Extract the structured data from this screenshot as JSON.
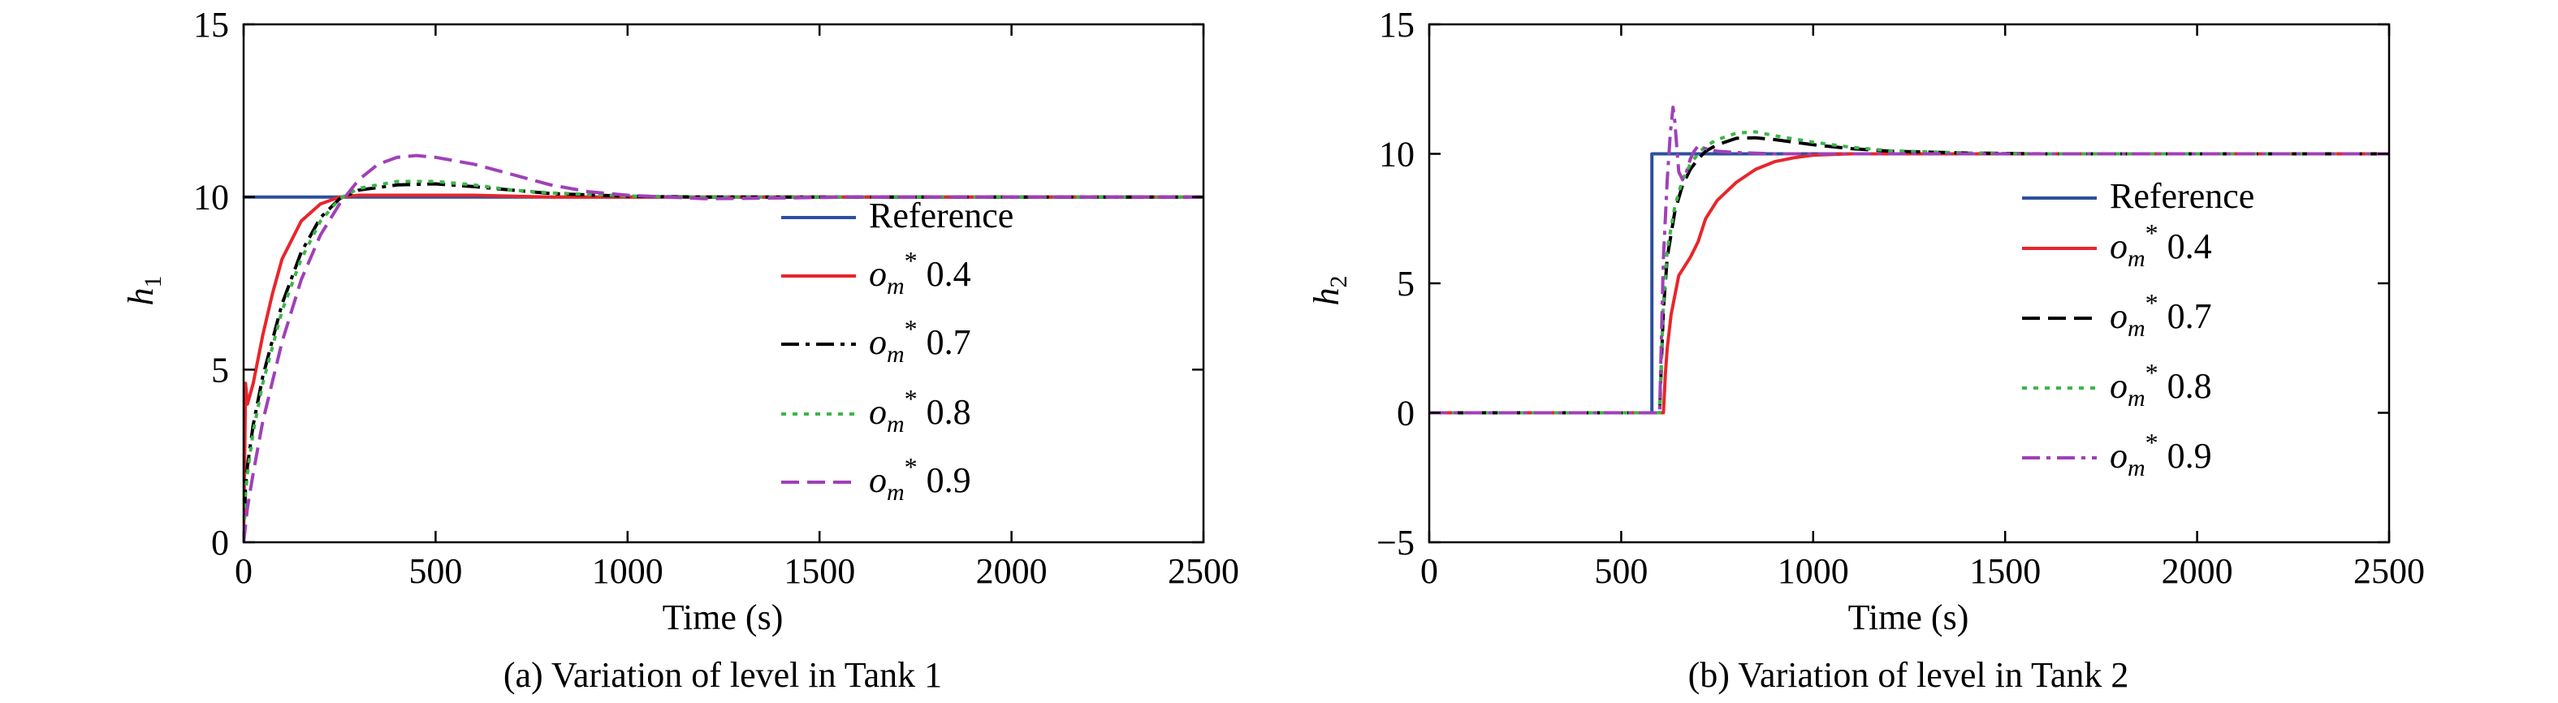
{
  "chart_data": [
    {
      "type": "line",
      "caption": "(a) Variation of level in Tank 1",
      "xlabel": "Time (s)",
      "ylabel": "h",
      "ylabel_sub": "1",
      "xlim": [
        0,
        2500
      ],
      "ylim": [
        0,
        15
      ],
      "xticks": [
        0,
        500,
        1000,
        1500,
        2000,
        2500
      ],
      "yticks": [
        0,
        5,
        10,
        15
      ],
      "grid": false,
      "legend_position": "center-right",
      "series": [
        {
          "name": "Reference",
          "color": "#2e4fa0",
          "dash": "solid",
          "x": [
            0,
            2500
          ],
          "y": [
            10,
            10
          ]
        },
        {
          "name": "0.4",
          "color": "#e8262b",
          "dash": "solid",
          "x": [
            0,
            5,
            10,
            25,
            50,
            75,
            100,
            150,
            200,
            250,
            300,
            350,
            400,
            600,
            800,
            1000,
            1200,
            1500,
            2000,
            2500
          ],
          "y": [
            0,
            4.6,
            4.0,
            4.6,
            6.0,
            7.2,
            8.2,
            9.3,
            9.8,
            10.0,
            10.05,
            10.05,
            10.05,
            10.05,
            10.0,
            10.0,
            10.0,
            10.0,
            10.0,
            10.0
          ]
        },
        {
          "name": "0.7",
          "color": "#000000",
          "dash": "dashdot",
          "x": [
            0,
            5,
            10,
            25,
            50,
            100,
            150,
            200,
            250,
            300,
            400,
            500,
            600,
            700,
            800,
            1000,
            1200,
            1500,
            2000,
            2500
          ],
          "y": [
            0,
            1.6,
            2.2,
            3.4,
            4.8,
            6.9,
            8.4,
            9.4,
            9.95,
            10.2,
            10.35,
            10.38,
            10.3,
            10.2,
            10.1,
            10.02,
            10.0,
            10.0,
            10.0,
            10.0
          ]
        },
        {
          "name": "0.8",
          "color": "#3db54a",
          "dash": "dotted",
          "x": [
            0,
            5,
            10,
            25,
            50,
            100,
            150,
            200,
            250,
            300,
            400,
            500,
            600,
            700,
            800,
            1000,
            1200,
            1500,
            2000,
            2500
          ],
          "y": [
            0,
            1.4,
            2.0,
            3.2,
            4.6,
            6.7,
            8.2,
            9.3,
            9.95,
            10.25,
            10.45,
            10.45,
            10.35,
            10.2,
            10.12,
            10.03,
            10.0,
            10.0,
            10.0,
            10.0
          ]
        },
        {
          "name": "0.9",
          "color": "#a040b8",
          "dash": "dashed",
          "x": [
            0,
            5,
            10,
            25,
            50,
            100,
            150,
            200,
            250,
            300,
            350,
            400,
            450,
            500,
            600,
            700,
            800,
            900,
            1000,
            1200,
            1400,
            1600,
            2000,
            2500
          ],
          "y": [
            0,
            0.5,
            1.0,
            2.0,
            3.5,
            5.8,
            7.6,
            8.9,
            9.8,
            10.5,
            10.95,
            11.15,
            11.2,
            11.15,
            10.95,
            10.65,
            10.35,
            10.15,
            10.05,
            9.95,
            9.97,
            10.0,
            10.0,
            10.0
          ]
        }
      ]
    },
    {
      "type": "line",
      "caption": "(b) Variation of level in Tank 2",
      "xlabel": "Time (s)",
      "ylabel": "h",
      "ylabel_sub": "2",
      "xlim": [
        0,
        2500
      ],
      "ylim": [
        -5,
        15
      ],
      "xticks": [
        0,
        500,
        1000,
        1500,
        2000,
        2500
      ],
      "yticks": [
        -5,
        0,
        5,
        10,
        15
      ],
      "ytick_labels": [
        "−5",
        "0",
        "5",
        "10",
        "15"
      ],
      "grid": false,
      "legend_position": "center-right",
      "series": [
        {
          "name": "Reference",
          "color": "#2e4fa0",
          "dash": "solid",
          "x": [
            0,
            580,
            580,
            2500
          ],
          "y": [
            0,
            0,
            10,
            10
          ]
        },
        {
          "name": "0.4",
          "color": "#e8262b",
          "dash": "solid",
          "x": [
            0,
            610,
            615,
            620,
            630,
            650,
            680,
            700,
            720,
            750,
            800,
            850,
            900,
            950,
            1000,
            1100,
            1200,
            1500,
            2000,
            2500
          ],
          "y": [
            0,
            0,
            1.5,
            2.5,
            3.8,
            5.3,
            6.0,
            6.6,
            7.5,
            8.2,
            8.9,
            9.4,
            9.7,
            9.85,
            9.95,
            10.0,
            10.0,
            10.0,
            10.0,
            10.0
          ]
        },
        {
          "name": "0.7",
          "color": "#000000",
          "dash": "dashed",
          "x": [
            0,
            600,
            605,
            610,
            620,
            640,
            660,
            680,
            700,
            720,
            750,
            800,
            850,
            900,
            1000,
            1100,
            1200,
            1400,
            1600,
            2000,
            2500
          ],
          "y": [
            0,
            0,
            2.0,
            4.0,
            6.0,
            7.8,
            8.8,
            9.4,
            9.8,
            10.1,
            10.35,
            10.6,
            10.62,
            10.55,
            10.35,
            10.2,
            10.1,
            10.03,
            10.0,
            10.0,
            10.0
          ]
        },
        {
          "name": "0.8",
          "color": "#3db54a",
          "dash": "dotted",
          "x": [
            0,
            600,
            605,
            610,
            620,
            640,
            660,
            680,
            700,
            720,
            750,
            800,
            850,
            900,
            1000,
            1100,
            1200,
            1400,
            1600,
            2000,
            2500
          ],
          "y": [
            0,
            0,
            2.2,
            4.2,
            6.3,
            8.0,
            9.0,
            9.6,
            10.0,
            10.3,
            10.55,
            10.8,
            10.85,
            10.7,
            10.45,
            10.25,
            10.12,
            10.03,
            10.0,
            10.0,
            10.0
          ]
        },
        {
          "name": "0.9",
          "color": "#a040b8",
          "dash": "dashdot",
          "x": [
            0,
            600,
            605,
            610,
            620,
            628,
            635,
            640,
            645,
            650,
            660,
            670,
            680,
            690,
            700,
            720,
            750,
            800,
            900,
            1000,
            1200,
            1500,
            2000,
            2500
          ],
          "y": [
            0,
            0,
            3.0,
            6.0,
            9.0,
            10.8,
            11.8,
            11.2,
            10.2,
            9.3,
            9.0,
            9.3,
            9.8,
            10.1,
            10.3,
            10.2,
            10.1,
            10.05,
            10.0,
            10.0,
            10.0,
            10.0,
            10.0,
            10.0
          ]
        }
      ]
    }
  ],
  "legend": {
    "reference_label": "Reference",
    "symbol_base": "o",
    "symbol_subscript": "m",
    "symbol_superscript": "*"
  }
}
